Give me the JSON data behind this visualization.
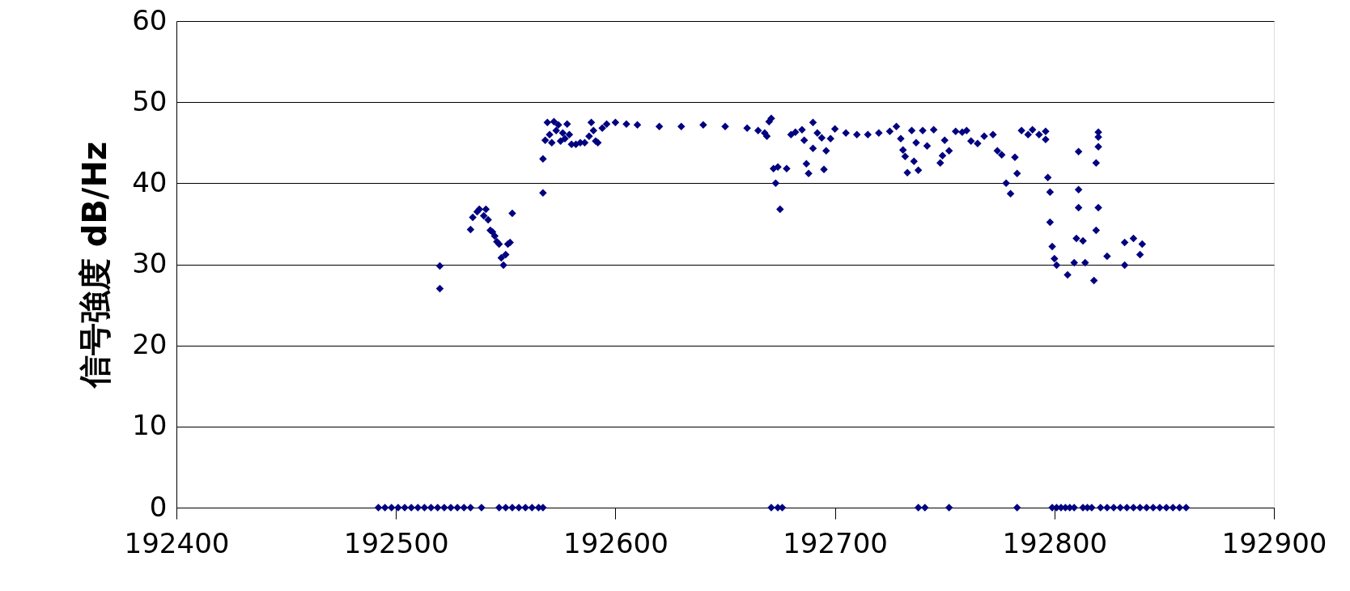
{
  "chart_data": {
    "type": "scatter",
    "ylabel": "信号強度 dB/Hz",
    "xlim": [
      192400,
      192900
    ],
    "xticks": [
      192400,
      192500,
      192600,
      192700,
      192800,
      192900
    ],
    "ylim": [
      0,
      60
    ],
    "yticks": [
      0,
      10,
      20,
      30,
      40,
      50,
      60
    ],
    "grid": "y",
    "marker": "diamond",
    "series": [
      {
        "color": "#000080",
        "x": [
          192492,
          192495,
          192498,
          192501,
          192504,
          192507,
          192510,
          192513,
          192516,
          192519,
          192522,
          192525,
          192528,
          192531,
          192534,
          192539,
          192547,
          192550,
          192553,
          192556,
          192559,
          192562,
          192565,
          192567,
          192671,
          192674,
          192676,
          192738,
          192741,
          192752,
          192783,
          192799,
          192801,
          192803,
          192805,
          192807,
          192809,
          192813,
          192815,
          192817,
          192821,
          192824,
          192827,
          192830,
          192833,
          192836,
          192839,
          192842,
          192845,
          192848,
          192851,
          192854,
          192857,
          192860,
          192520,
          192520,
          192534,
          192535,
          192537,
          192538,
          192540,
          192541,
          192542,
          192543,
          192544,
          192545,
          192546,
          192547,
          192548,
          192549,
          192550,
          192551,
          192552,
          192553,
          192567,
          192567,
          192568,
          192569,
          192570,
          192571,
          192572,
          192573,
          192574,
          192575,
          192576,
          192577,
          192578,
          192579,
          192580,
          192582,
          192584,
          192586,
          192588,
          192589,
          192590,
          192591,
          192592,
          192594,
          192596,
          192600,
          192605,
          192610,
          192620,
          192630,
          192640,
          192650,
          192660,
          192665,
          192668,
          192669,
          192670,
          192671,
          192672,
          192673,
          192674,
          192675,
          192678,
          192680,
          192682,
          192685,
          192686,
          192687,
          192688,
          192690,
          192690,
          192692,
          192694,
          192695,
          192696,
          192698,
          192700,
          192705,
          192710,
          192715,
          192720,
          192725,
          192728,
          192730,
          192731,
          192732,
          192733,
          192735,
          192736,
          192737,
          192738,
          192740,
          192742,
          192745,
          192748,
          192749,
          192750,
          192752,
          192755,
          192758,
          192760,
          192762,
          192765,
          192768,
          192772,
          192774,
          192776,
          192778,
          192780,
          192782,
          192783,
          192785,
          192788,
          192790,
          192793,
          192796,
          192796,
          192797,
          192798,
          192798,
          192799,
          192800,
          192801,
          192806,
          192809,
          192810,
          192811,
          192811,
          192811,
          192813,
          192814,
          192818,
          192819,
          192819,
          192820,
          192820,
          192820,
          192820,
          192824,
          192832,
          192832,
          192836,
          192839,
          192840
        ],
        "values": [
          0,
          0,
          0,
          0,
          0,
          0,
          0,
          0,
          0,
          0,
          0,
          0,
          0,
          0,
          0,
          0,
          0,
          0,
          0,
          0,
          0,
          0,
          0,
          0,
          0,
          0,
          0,
          0,
          0,
          0,
          0,
          0,
          0,
          0,
          0,
          0,
          0,
          0,
          0,
          0,
          0,
          0,
          0,
          0,
          0,
          0,
          0,
          0,
          0,
          0,
          0,
          0,
          0,
          0,
          29.8,
          27,
          34.3,
          35.8,
          36.5,
          36.8,
          36,
          36.8,
          35.5,
          34.2,
          34,
          33.5,
          32.8,
          32.5,
          30.8,
          29.9,
          31.2,
          32.5,
          32.7,
          36.3,
          43,
          38.8,
          45.3,
          47.5,
          46,
          45,
          47.6,
          46.5,
          47.2,
          45.2,
          46.2,
          45.5,
          47.3,
          46,
          44.8,
          44.8,
          45,
          45,
          45.8,
          47.5,
          46.5,
          45.2,
          45,
          46.8,
          47.3,
          47.5,
          47.3,
          47.2,
          47,
          47,
          47.2,
          47,
          46.8,
          46.5,
          46.2,
          45.8,
          47.6,
          48,
          41.8,
          40,
          42,
          36.8,
          41.8,
          46,
          46.3,
          46.6,
          45.3,
          42.4,
          41.2,
          47.5,
          44.3,
          46.2,
          45.6,
          41.7,
          44,
          45.5,
          46.7,
          46.2,
          46,
          46,
          46.2,
          46.4,
          47,
          45.5,
          44.1,
          43.3,
          41.3,
          46.5,
          42.7,
          45,
          41.6,
          46.5,
          44.6,
          46.6,
          42.5,
          43.4,
          45.3,
          44,
          46.4,
          46.3,
          46.5,
          45.2,
          44.9,
          45.8,
          46,
          44,
          43.5,
          40,
          38.7,
          43.2,
          41.2,
          46.5,
          46,
          46.6,
          46,
          45.4,
          46.4,
          40.7,
          38.9,
          35.2,
          32.2,
          30.7,
          29.9,
          28.7,
          30.2,
          33.2,
          39.2,
          43.9,
          37,
          32.9,
          30.2,
          28,
          34.2,
          42.5,
          45.7,
          46.3,
          44.5,
          37,
          31,
          32.7,
          29.9,
          33.2,
          31.2,
          32.5
        ]
      }
    ]
  }
}
